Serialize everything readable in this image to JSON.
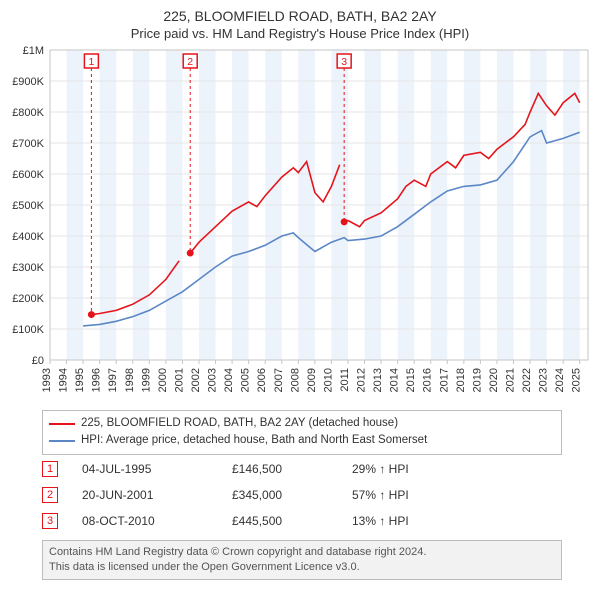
{
  "title_main": "225, BLOOMFIELD ROAD, BATH, BA2 2AY",
  "title_sub": "Price paid vs. HM Land Registry's House Price Index (HPI)",
  "title_fontsize": 14,
  "subtitle_fontsize": 13,
  "chart": {
    "type": "line",
    "background_color": "#ffffff",
    "plot_border_color": "#c6c6c6",
    "grid_color": "#e5e5e5",
    "band_color": "#edf3fb",
    "x_year_min": 1993,
    "x_year_max": 2025.5,
    "x_ticks": [
      1993,
      1994,
      1995,
      1996,
      1997,
      1998,
      1999,
      2000,
      2001,
      2002,
      2003,
      2004,
      2005,
      2006,
      2007,
      2008,
      2009,
      2010,
      2011,
      2012,
      2013,
      2014,
      2015,
      2016,
      2017,
      2018,
      2019,
      2020,
      2021,
      2022,
      2023,
      2024,
      2025
    ],
    "ylim": [
      0,
      1000000
    ],
    "ytick_step": 100000,
    "yticks": [
      0,
      100000,
      200000,
      300000,
      400000,
      500000,
      600000,
      700000,
      800000,
      900000,
      1000000
    ],
    "ytick_labels": [
      "£0",
      "£100K",
      "£200K",
      "£300K",
      "£400K",
      "£500K",
      "£600K",
      "£700K",
      "£800K",
      "£900K",
      "£1M"
    ],
    "tick_fontsize": 11,
    "tick_color": "#333333",
    "line_width": 1.6,
    "series_property": {
      "color": "#e5141b",
      "points": [
        [
          1995.5,
          146500
        ],
        [
          1996,
          150000
        ],
        [
          1997,
          160000
        ],
        [
          1998,
          180000
        ],
        [
          1999,
          210000
        ],
        [
          2000,
          260000
        ],
        [
          2000.8,
          320000
        ],
        [
          2001.47,
          345000
        ],
        [
          2002,
          380000
        ],
        [
          2003,
          430000
        ],
        [
          2004,
          480000
        ],
        [
          2005,
          510000
        ],
        [
          2005.5,
          495000
        ],
        [
          2006,
          530000
        ],
        [
          2007,
          590000
        ],
        [
          2007.7,
          620000
        ],
        [
          2008,
          605000
        ],
        [
          2008.5,
          640000
        ],
        [
          2009,
          540000
        ],
        [
          2009.5,
          510000
        ],
        [
          2010,
          560000
        ],
        [
          2010.5,
          630000
        ],
        [
          2010.77,
          445500
        ],
        [
          2011,
          450000
        ],
        [
          2011.7,
          430000
        ],
        [
          2012,
          450000
        ],
        [
          2013,
          475000
        ],
        [
          2014,
          520000
        ],
        [
          2014.5,
          560000
        ],
        [
          2015,
          580000
        ],
        [
          2015.7,
          560000
        ],
        [
          2016,
          600000
        ],
        [
          2017,
          640000
        ],
        [
          2017.5,
          620000
        ],
        [
          2018,
          660000
        ],
        [
          2019,
          670000
        ],
        [
          2019.5,
          650000
        ],
        [
          2020,
          680000
        ],
        [
          2021,
          720000
        ],
        [
          2021.7,
          760000
        ],
        [
          2022,
          800000
        ],
        [
          2022.5,
          860000
        ],
        [
          2023,
          820000
        ],
        [
          2023.5,
          790000
        ],
        [
          2024,
          830000
        ],
        [
          2024.7,
          860000
        ],
        [
          2025,
          830000
        ]
      ],
      "sale_markers": [
        {
          "x": 1995.5,
          "y": 146500,
          "label": "1"
        },
        {
          "x": 2001.47,
          "y": 345000,
          "label": "2"
        },
        {
          "x": 2010.77,
          "y": 445500,
          "label": "3"
        }
      ],
      "marker_size": 14,
      "marker_border": "#e5141b",
      "marker_fill": "#ffffff"
    },
    "series_hpi": {
      "color": "#5b87c7",
      "points": [
        [
          1995,
          110000
        ],
        [
          1996,
          115000
        ],
        [
          1997,
          125000
        ],
        [
          1998,
          140000
        ],
        [
          1999,
          160000
        ],
        [
          2000,
          190000
        ],
        [
          2001,
          220000
        ],
        [
          2002,
          260000
        ],
        [
          2003,
          300000
        ],
        [
          2004,
          335000
        ],
        [
          2005,
          350000
        ],
        [
          2006,
          370000
        ],
        [
          2007,
          400000
        ],
        [
          2007.7,
          410000
        ],
        [
          2008,
          395000
        ],
        [
          2009,
          350000
        ],
        [
          2010,
          380000
        ],
        [
          2010.77,
          395000
        ],
        [
          2011,
          385000
        ],
        [
          2012,
          390000
        ],
        [
          2013,
          400000
        ],
        [
          2014,
          430000
        ],
        [
          2015,
          470000
        ],
        [
          2016,
          510000
        ],
        [
          2017,
          545000
        ],
        [
          2018,
          560000
        ],
        [
          2019,
          565000
        ],
        [
          2020,
          580000
        ],
        [
          2021,
          640000
        ],
        [
          2022,
          720000
        ],
        [
          2022.7,
          740000
        ],
        [
          2023,
          700000
        ],
        [
          2024,
          715000
        ],
        [
          2025,
          735000
        ]
      ]
    }
  },
  "legend": {
    "border_color": "#bdbdbd",
    "fontsize": 11.5,
    "items": [
      {
        "color": "#e5141b",
        "label": "225, BLOOMFIELD ROAD, BATH, BA2 2AY (detached house)"
      },
      {
        "color": "#5b87c7",
        "label": "HPI: Average price, detached house, Bath and North East Somerset"
      }
    ]
  },
  "sales": [
    {
      "num": "1",
      "date": "04-JUL-1995",
      "price": "£146,500",
      "delta": "29% ↑ HPI"
    },
    {
      "num": "2",
      "date": "20-JUN-2001",
      "price": "£345,000",
      "delta": "57% ↑ HPI"
    },
    {
      "num": "3",
      "date": "08-OCT-2010",
      "price": "£445,500",
      "delta": "13% ↑ HPI"
    }
  ],
  "sales_marker_color": "#e5141b",
  "sales_fontsize": 12,
  "footer": {
    "line1": "Contains HM Land Registry data © Crown copyright and database right 2024.",
    "line2": "This data is licensed under the Open Government Licence v3.0.",
    "bg": "#f2f2f2",
    "border": "#bdbdbd",
    "color": "#555555",
    "fontsize": 11
  }
}
